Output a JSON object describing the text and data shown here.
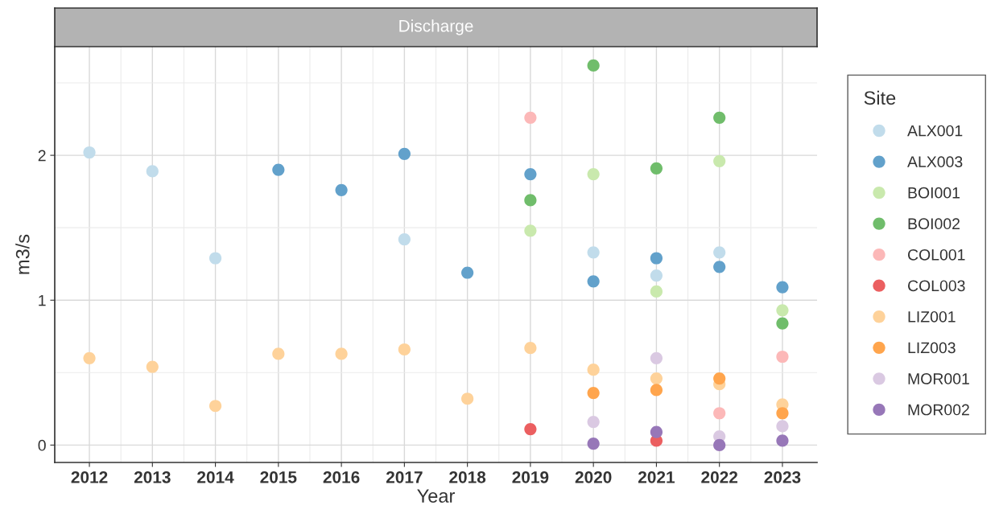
{
  "chart_data": {
    "type": "scatter",
    "title": "Discharge",
    "xlabel": "Year",
    "ylabel": "m3/s",
    "legend_title": "Site",
    "xlim": [
      2011.45,
      2023.55
    ],
    "ylim": [
      -0.12,
      2.75
    ],
    "xticks": [
      2012,
      2013,
      2014,
      2015,
      2016,
      2017,
      2018,
      2019,
      2020,
      2021,
      2022,
      2023
    ],
    "yticks": [
      0,
      1,
      2
    ],
    "grid": true,
    "legend": "right",
    "marker": "circle",
    "series": [
      {
        "name": "ALX001",
        "color": "#c1dceb",
        "x": [
          2012,
          2013,
          2014,
          2017,
          2020,
          2021,
          2022
        ],
        "values": [
          2.02,
          1.89,
          1.29,
          1.42,
          1.33,
          1.17,
          1.33
        ]
      },
      {
        "name": "ALX003",
        "color": "#62a1cb",
        "x": [
          2015,
          2016,
          2017,
          2018,
          2019,
          2020,
          2021,
          2022,
          2023
        ],
        "values": [
          1.9,
          1.76,
          2.01,
          1.19,
          1.87,
          1.13,
          1.29,
          1.23,
          1.09
        ]
      },
      {
        "name": "BOI001",
        "color": "#c9e9ad",
        "x": [
          2019,
          2020,
          2021,
          2022,
          2023
        ],
        "values": [
          1.48,
          1.87,
          1.06,
          1.96,
          0.93
        ]
      },
      {
        "name": "BOI002",
        "color": "#70bd6b",
        "x": [
          2019,
          2020,
          2021,
          2022,
          2023
        ],
        "values": [
          1.69,
          2.62,
          1.91,
          2.26,
          0.84
        ]
      },
      {
        "name": "COL001",
        "color": "#fcb8b8",
        "x": [
          2019,
          2022,
          2023
        ],
        "values": [
          2.26,
          0.22,
          0.61
        ]
      },
      {
        "name": "COL003",
        "color": "#eb5f60",
        "x": [
          2019,
          2021
        ],
        "values": [
          0.11,
          0.03
        ]
      },
      {
        "name": "LIZ001",
        "color": "#fed29a",
        "x": [
          2012,
          2013,
          2014,
          2015,
          2016,
          2017,
          2018,
          2019,
          2020,
          2021,
          2022,
          2023
        ],
        "values": [
          0.6,
          0.54,
          0.27,
          0.63,
          0.63,
          0.66,
          0.32,
          0.67,
          0.52,
          0.46,
          0.42,
          0.28
        ]
      },
      {
        "name": "LIZ003",
        "color": "#ffa54d",
        "x": [
          2020,
          2021,
          2022,
          2023
        ],
        "values": [
          0.36,
          0.38,
          0.46,
          0.22
        ]
      },
      {
        "name": "MOR001",
        "color": "#dac9e2",
        "x": [
          2020,
          2021,
          2022,
          2023
        ],
        "values": [
          0.16,
          0.6,
          0.06,
          0.13
        ]
      },
      {
        "name": "MOR002",
        "color": "#9777b8",
        "x": [
          2020,
          2021,
          2022,
          2023
        ],
        "values": [
          0.01,
          0.09,
          0.0,
          0.03
        ]
      }
    ]
  }
}
